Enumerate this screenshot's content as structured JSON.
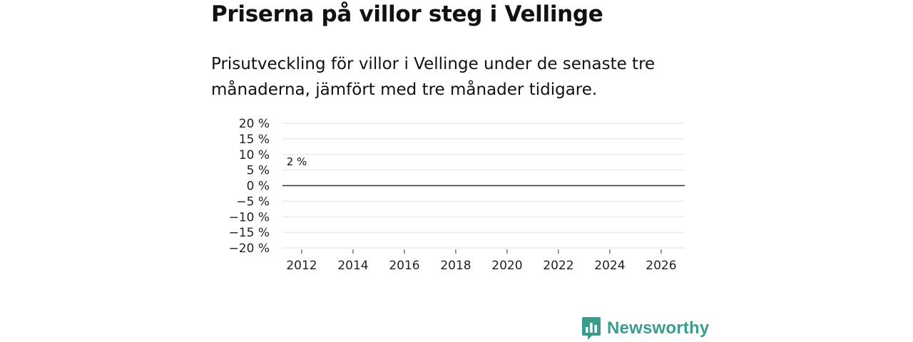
{
  "header": {
    "title": "Priserna på villor steg i Vellinge",
    "subtitle": "Prisutveckling för villor i Vellinge under de senaste tre månaderna, jämfört med tre månader tidigare."
  },
  "brand": {
    "name": "Newsworthy"
  },
  "colors": {
    "positive": "#17a398",
    "negative": "#a3103f",
    "grid": "#e2e2e2",
    "zero": "#333333",
    "brand": "#3a9c8d"
  },
  "chart_data": {
    "type": "bar",
    "title": "Priserna på villor steg i Vellinge",
    "subtitle": "Prisutveckling för villor i Vellinge under de senaste tre månaderna, jämfört med tre månader tidigare.",
    "xlabel": "",
    "ylabel": "",
    "unit": "%",
    "grid": true,
    "ylim": [
      -20,
      20
    ],
    "yticks": [
      20,
      15,
      10,
      5,
      0,
      -5,
      -10,
      -15,
      -20
    ],
    "ytick_labels": [
      "20 %",
      "15 %",
      "10 %",
      "5 %",
      "0 %",
      "−5 %",
      "−10 %",
      "−15 %",
      "−20 %"
    ],
    "xlim": [
      2011.25,
      2026.92
    ],
    "xticks": [
      2012,
      2014,
      2016,
      2018,
      2020,
      2022,
      2024,
      2026
    ],
    "xtick_labels": [
      "2012",
      "2014",
      "2016",
      "2018",
      "2020",
      "2022",
      "2024",
      "2026"
    ],
    "start": [
      2011,
      10
    ],
    "annotation": {
      "text": "2 %",
      "value": 2
    },
    "values": [
      0,
      0,
      0,
      0,
      0,
      0,
      0,
      0,
      0,
      0,
      0,
      0,
      0,
      0,
      0,
      0,
      0,
      0,
      0,
      0,
      0,
      0,
      0,
      0,
      0,
      0,
      0,
      0,
      0,
      0,
      0,
      0,
      0,
      0,
      0,
      0,
      0,
      0,
      0,
      0,
      0,
      0,
      0,
      0,
      0,
      0,
      0,
      0,
      0,
      0,
      0,
      0,
      0,
      0,
      0,
      0,
      0,
      0,
      0,
      0,
      0,
      0,
      0,
      0,
      0,
      0,
      0,
      0,
      0,
      0,
      0,
      0,
      0,
      0,
      0,
      0,
      0,
      0,
      0,
      0,
      0,
      0,
      0,
      0,
      0,
      0,
      0,
      0,
      0,
      0,
      0,
      0,
      0,
      0,
      0,
      0,
      0,
      0,
      0,
      0,
      0,
      0,
      0,
      0,
      0,
      0,
      0,
      0,
      0,
      0,
      0,
      0,
      0,
      0,
      0,
      0,
      0,
      0,
      0,
      0,
      0,
      0,
      0,
      0,
      0,
      0,
      0,
      0,
      0,
      0,
      0,
      0,
      0,
      0,
      0,
      0,
      0,
      0,
      0,
      0,
      0,
      0,
      0,
      0,
      0,
      0,
      0,
      0,
      0,
      0,
      0,
      0,
      0,
      0,
      0,
      0,
      0,
      0,
      0,
      0,
      0,
      0,
      0,
      0,
      0,
      0,
      0,
      0,
      0,
      0,
      0,
      0,
      0,
      0,
      0,
      0,
      0,
      0,
      0,
      0,
      0,
      0,
      0,
      0,
      0
    ]
  }
}
